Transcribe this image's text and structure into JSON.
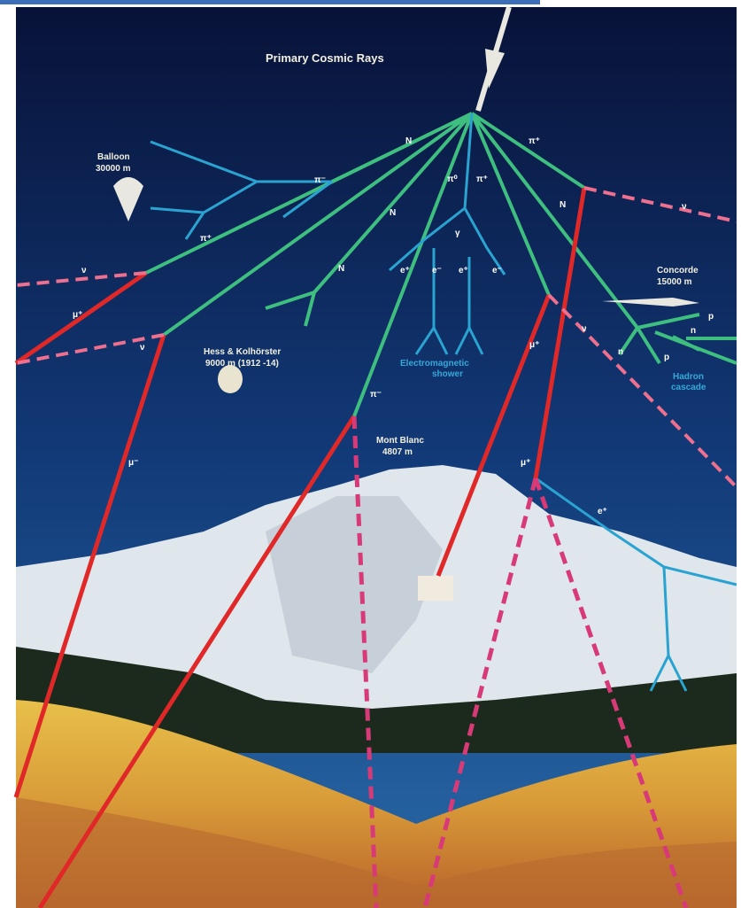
{
  "title": "Primary Cosmic Rays",
  "places": {
    "balloon": {
      "name": "Balloon",
      "height": "30000 m"
    },
    "hess": {
      "name": "Hess & Kolhörster",
      "height": "9000 m (1912 -14)"
    },
    "em_shower": {
      "line1": "Electromagnetic",
      "line2": "shower"
    },
    "mont_blanc": {
      "name": "Mont Blanc",
      "height": "4807 m"
    },
    "concorde": {
      "name": "Concorde",
      "height": "15000 m"
    },
    "hadron": {
      "line1": "Hadron",
      "line2": "cascade"
    }
  },
  "particles": {
    "N": "N",
    "pi_minus": "π⁻",
    "pi_zero": "π⁰",
    "pi_plus": "π⁺",
    "gamma": "γ",
    "e_plus": "e⁺",
    "e_minus": "e⁻",
    "nu": "ν",
    "mu_plus": "μ⁺",
    "mu_minus": "μ⁻",
    "n": "n",
    "p": "p"
  }
}
